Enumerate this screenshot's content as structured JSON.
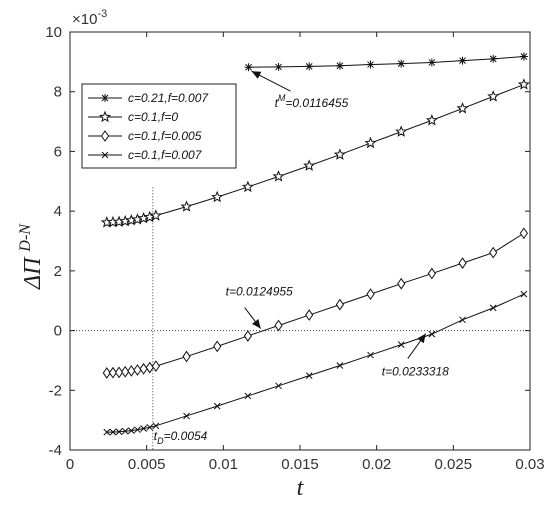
{
  "chart_data": {
    "type": "line",
    "xlabel": "t",
    "ylabel_main": "ΔΠ",
    "ylabel_sup": "D-N",
    "exponent_label": "×10",
    "exponent_power": "-3",
    "xlim": [
      0,
      0.03
    ],
    "ylim": [
      -4,
      10
    ],
    "x_ticks": [
      0,
      0.005,
      0.01,
      0.015,
      0.02,
      0.025,
      0.03
    ],
    "x_tick_labels": [
      "0",
      "0.005",
      "0.01",
      "0.015",
      "0.02",
      "0.025",
      "0.03"
    ],
    "y_ticks": [
      -4,
      -2,
      0,
      2,
      4,
      6,
      8,
      10
    ],
    "y_tick_labels": [
      "-4",
      "-2",
      "0",
      "2",
      "4",
      "6",
      "8",
      "10"
    ],
    "grid": false,
    "legend_position": "upper-left",
    "series": [
      {
        "name": "c=0.21,f=0.007",
        "marker": "asterisk",
        "x": [
          0.0116455,
          0.0136,
          0.0156,
          0.0176,
          0.0196,
          0.0216,
          0.0236,
          0.0256,
          0.0276,
          0.0296
        ],
        "y": [
          8.82,
          8.83,
          8.85,
          8.87,
          8.91,
          8.94,
          8.98,
          9.04,
          9.1,
          9.18
        ]
      },
      {
        "name": "c=0.1,f=0",
        "marker": "star",
        "x": [
          0.0024,
          0.0028,
          0.0032,
          0.0036,
          0.004,
          0.0044,
          0.0048,
          0.0052,
          0.0056,
          0.0076,
          0.0096,
          0.0116,
          0.0136,
          0.0156,
          0.0176,
          0.0196,
          0.0216,
          0.0236,
          0.0256,
          0.0276,
          0.0296
        ],
        "y": [
          3.62,
          3.63,
          3.64,
          3.66,
          3.69,
          3.72,
          3.76,
          3.8,
          3.85,
          4.15,
          4.47,
          4.81,
          5.16,
          5.52,
          5.89,
          6.28,
          6.66,
          7.04,
          7.44,
          7.84,
          8.24
        ]
      },
      {
        "name": "c=0.1,f=0.005",
        "marker": "diamond",
        "x": [
          0.0024,
          0.0028,
          0.0032,
          0.0036,
          0.004,
          0.0044,
          0.0048,
          0.0052,
          0.0056,
          0.0076,
          0.0096,
          0.0116,
          0.0136,
          0.0156,
          0.0176,
          0.0196,
          0.0216,
          0.0236,
          0.0256,
          0.0276,
          0.0296
        ],
        "y": [
          -1.42,
          -1.41,
          -1.4,
          -1.38,
          -1.35,
          -1.32,
          -1.28,
          -1.24,
          -1.19,
          -0.87,
          -0.53,
          -0.18,
          0.17,
          0.52,
          0.87,
          1.22,
          1.57,
          1.91,
          2.26,
          2.61,
          3.26
        ]
      },
      {
        "name": "c=0.1,f=0.007",
        "marker": "x",
        "x": [
          0.0024,
          0.0028,
          0.0032,
          0.0036,
          0.004,
          0.0044,
          0.0048,
          0.0052,
          0.0056,
          0.0076,
          0.0096,
          0.0116,
          0.0136,
          0.0156,
          0.0176,
          0.0196,
          0.0216,
          0.0236,
          0.0256,
          0.0276,
          0.0296
        ],
        "y": [
          -3.4,
          -3.4,
          -3.39,
          -3.37,
          -3.35,
          -3.32,
          -3.28,
          -3.24,
          -3.19,
          -2.86,
          -2.53,
          -2.19,
          -1.85,
          -1.51,
          -1.17,
          -0.82,
          -0.47,
          -0.12,
          0.36,
          0.76,
          1.22
        ]
      }
    ],
    "reference_lines": [
      {
        "orientation": "horizontal",
        "y": 0,
        "style": "dotted"
      },
      {
        "orientation": "vertical",
        "x": 0.0054,
        "style": "dotted"
      }
    ],
    "annotations": [
      {
        "text_main": "t",
        "text_sup": "M",
        "text_rest": "=0.0116455",
        "x": 0.0116455,
        "y": 8.82
      },
      {
        "text_main": "t=0.0124955",
        "text_sup": "",
        "text_rest": "",
        "x": 0.0125,
        "y": 0
      },
      {
        "text_main": "t=0.0233318",
        "text_sup": "",
        "text_rest": "",
        "x": 0.0233318,
        "y": 0
      },
      {
        "text_main": "t",
        "text_sub": "D",
        "text_rest": "=0.0054",
        "x": 0.0054,
        "y": -4
      }
    ]
  }
}
